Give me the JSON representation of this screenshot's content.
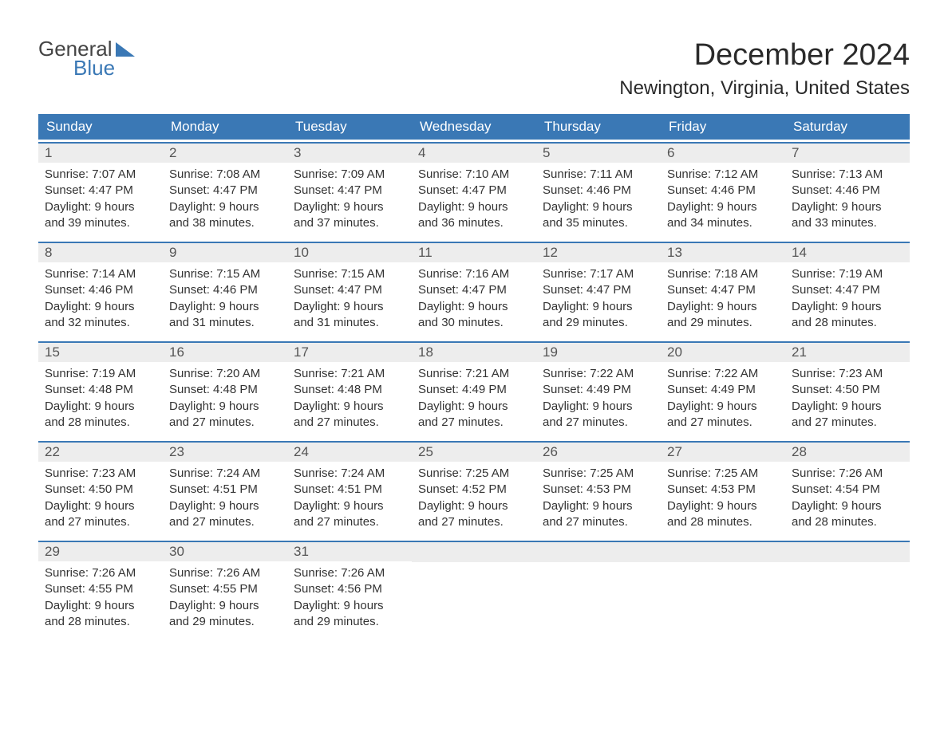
{
  "colors": {
    "header_bg": "#3a78b5",
    "header_text": "#ffffff",
    "daynum_bg": "#ededed",
    "daynum_text": "#555555",
    "body_text": "#333333",
    "background": "#ffffff",
    "logo_accent": "#3a78b5",
    "row_border": "#3a78b5"
  },
  "typography": {
    "title_fontsize": 38,
    "location_fontsize": 24,
    "dayheader_fontsize": 17,
    "daynum_fontsize": 17,
    "content_fontsize": 15,
    "logo_fontsize": 26
  },
  "logo": {
    "general": "General",
    "blue": "Blue"
  },
  "title": "December 2024",
  "location": "Newington, Virginia, United States",
  "day_headers": [
    "Sunday",
    "Monday",
    "Tuesday",
    "Wednesday",
    "Thursday",
    "Friday",
    "Saturday"
  ],
  "weeks": [
    [
      {
        "num": "1",
        "sunrise": "Sunrise: 7:07 AM",
        "sunset": "Sunset: 4:47 PM",
        "daylight1": "Daylight: 9 hours",
        "daylight2": "and 39 minutes."
      },
      {
        "num": "2",
        "sunrise": "Sunrise: 7:08 AM",
        "sunset": "Sunset: 4:47 PM",
        "daylight1": "Daylight: 9 hours",
        "daylight2": "and 38 minutes."
      },
      {
        "num": "3",
        "sunrise": "Sunrise: 7:09 AM",
        "sunset": "Sunset: 4:47 PM",
        "daylight1": "Daylight: 9 hours",
        "daylight2": "and 37 minutes."
      },
      {
        "num": "4",
        "sunrise": "Sunrise: 7:10 AM",
        "sunset": "Sunset: 4:47 PM",
        "daylight1": "Daylight: 9 hours",
        "daylight2": "and 36 minutes."
      },
      {
        "num": "5",
        "sunrise": "Sunrise: 7:11 AM",
        "sunset": "Sunset: 4:46 PM",
        "daylight1": "Daylight: 9 hours",
        "daylight2": "and 35 minutes."
      },
      {
        "num": "6",
        "sunrise": "Sunrise: 7:12 AM",
        "sunset": "Sunset: 4:46 PM",
        "daylight1": "Daylight: 9 hours",
        "daylight2": "and 34 minutes."
      },
      {
        "num": "7",
        "sunrise": "Sunrise: 7:13 AM",
        "sunset": "Sunset: 4:46 PM",
        "daylight1": "Daylight: 9 hours",
        "daylight2": "and 33 minutes."
      }
    ],
    [
      {
        "num": "8",
        "sunrise": "Sunrise: 7:14 AM",
        "sunset": "Sunset: 4:46 PM",
        "daylight1": "Daylight: 9 hours",
        "daylight2": "and 32 minutes."
      },
      {
        "num": "9",
        "sunrise": "Sunrise: 7:15 AM",
        "sunset": "Sunset: 4:46 PM",
        "daylight1": "Daylight: 9 hours",
        "daylight2": "and 31 minutes."
      },
      {
        "num": "10",
        "sunrise": "Sunrise: 7:15 AM",
        "sunset": "Sunset: 4:47 PM",
        "daylight1": "Daylight: 9 hours",
        "daylight2": "and 31 minutes."
      },
      {
        "num": "11",
        "sunrise": "Sunrise: 7:16 AM",
        "sunset": "Sunset: 4:47 PM",
        "daylight1": "Daylight: 9 hours",
        "daylight2": "and 30 minutes."
      },
      {
        "num": "12",
        "sunrise": "Sunrise: 7:17 AM",
        "sunset": "Sunset: 4:47 PM",
        "daylight1": "Daylight: 9 hours",
        "daylight2": "and 29 minutes."
      },
      {
        "num": "13",
        "sunrise": "Sunrise: 7:18 AM",
        "sunset": "Sunset: 4:47 PM",
        "daylight1": "Daylight: 9 hours",
        "daylight2": "and 29 minutes."
      },
      {
        "num": "14",
        "sunrise": "Sunrise: 7:19 AM",
        "sunset": "Sunset: 4:47 PM",
        "daylight1": "Daylight: 9 hours",
        "daylight2": "and 28 minutes."
      }
    ],
    [
      {
        "num": "15",
        "sunrise": "Sunrise: 7:19 AM",
        "sunset": "Sunset: 4:48 PM",
        "daylight1": "Daylight: 9 hours",
        "daylight2": "and 28 minutes."
      },
      {
        "num": "16",
        "sunrise": "Sunrise: 7:20 AM",
        "sunset": "Sunset: 4:48 PM",
        "daylight1": "Daylight: 9 hours",
        "daylight2": "and 27 minutes."
      },
      {
        "num": "17",
        "sunrise": "Sunrise: 7:21 AM",
        "sunset": "Sunset: 4:48 PM",
        "daylight1": "Daylight: 9 hours",
        "daylight2": "and 27 minutes."
      },
      {
        "num": "18",
        "sunrise": "Sunrise: 7:21 AM",
        "sunset": "Sunset: 4:49 PM",
        "daylight1": "Daylight: 9 hours",
        "daylight2": "and 27 minutes."
      },
      {
        "num": "19",
        "sunrise": "Sunrise: 7:22 AM",
        "sunset": "Sunset: 4:49 PM",
        "daylight1": "Daylight: 9 hours",
        "daylight2": "and 27 minutes."
      },
      {
        "num": "20",
        "sunrise": "Sunrise: 7:22 AM",
        "sunset": "Sunset: 4:49 PM",
        "daylight1": "Daylight: 9 hours",
        "daylight2": "and 27 minutes."
      },
      {
        "num": "21",
        "sunrise": "Sunrise: 7:23 AM",
        "sunset": "Sunset: 4:50 PM",
        "daylight1": "Daylight: 9 hours",
        "daylight2": "and 27 minutes."
      }
    ],
    [
      {
        "num": "22",
        "sunrise": "Sunrise: 7:23 AM",
        "sunset": "Sunset: 4:50 PM",
        "daylight1": "Daylight: 9 hours",
        "daylight2": "and 27 minutes."
      },
      {
        "num": "23",
        "sunrise": "Sunrise: 7:24 AM",
        "sunset": "Sunset: 4:51 PM",
        "daylight1": "Daylight: 9 hours",
        "daylight2": "and 27 minutes."
      },
      {
        "num": "24",
        "sunrise": "Sunrise: 7:24 AM",
        "sunset": "Sunset: 4:51 PM",
        "daylight1": "Daylight: 9 hours",
        "daylight2": "and 27 minutes."
      },
      {
        "num": "25",
        "sunrise": "Sunrise: 7:25 AM",
        "sunset": "Sunset: 4:52 PM",
        "daylight1": "Daylight: 9 hours",
        "daylight2": "and 27 minutes."
      },
      {
        "num": "26",
        "sunrise": "Sunrise: 7:25 AM",
        "sunset": "Sunset: 4:53 PM",
        "daylight1": "Daylight: 9 hours",
        "daylight2": "and 27 minutes."
      },
      {
        "num": "27",
        "sunrise": "Sunrise: 7:25 AM",
        "sunset": "Sunset: 4:53 PM",
        "daylight1": "Daylight: 9 hours",
        "daylight2": "and 28 minutes."
      },
      {
        "num": "28",
        "sunrise": "Sunrise: 7:26 AM",
        "sunset": "Sunset: 4:54 PM",
        "daylight1": "Daylight: 9 hours",
        "daylight2": "and 28 minutes."
      }
    ],
    [
      {
        "num": "29",
        "sunrise": "Sunrise: 7:26 AM",
        "sunset": "Sunset: 4:55 PM",
        "daylight1": "Daylight: 9 hours",
        "daylight2": "and 28 minutes."
      },
      {
        "num": "30",
        "sunrise": "Sunrise: 7:26 AM",
        "sunset": "Sunset: 4:55 PM",
        "daylight1": "Daylight: 9 hours",
        "daylight2": "and 29 minutes."
      },
      {
        "num": "31",
        "sunrise": "Sunrise: 7:26 AM",
        "sunset": "Sunset: 4:56 PM",
        "daylight1": "Daylight: 9 hours",
        "daylight2": "and 29 minutes."
      },
      null,
      null,
      null,
      null
    ]
  ]
}
